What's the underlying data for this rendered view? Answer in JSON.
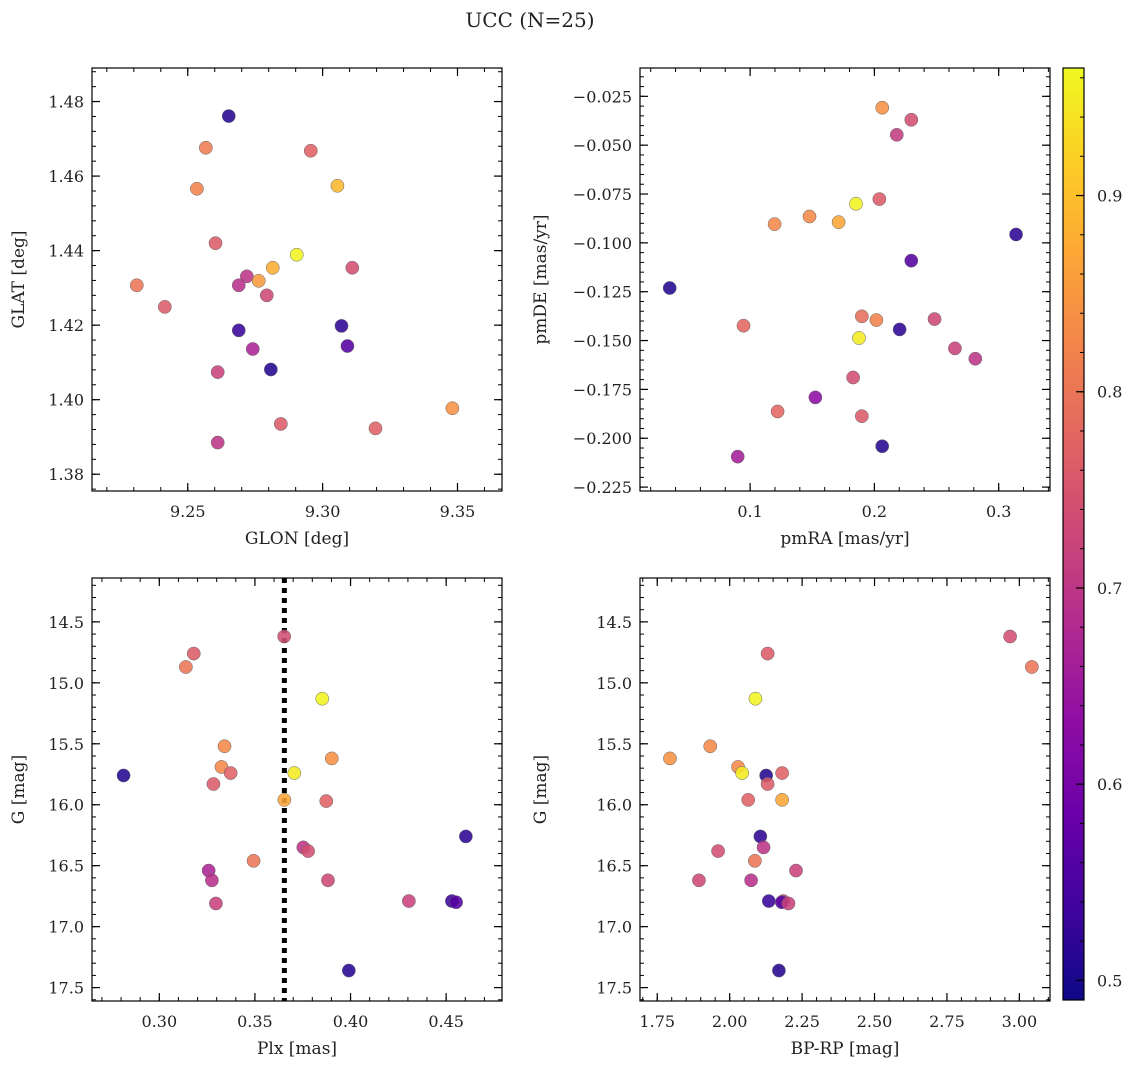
{
  "chart_data": {
    "suptitle": "UCC (N=25)",
    "colorbar": {
      "colormap": "plasma",
      "range": [
        0.49,
        0.965
      ],
      "ticks": [
        0.5,
        0.6,
        0.7,
        0.8,
        0.9
      ],
      "tick_labels": [
        "0.5",
        "0.6",
        "0.7",
        "0.8",
        "0.9"
      ]
    },
    "panels": [
      {
        "type": "scatter",
        "xlabel": "GLON [deg]",
        "ylabel": "GLAT [deg]",
        "xlim": [
          9.2145,
          9.3665
        ],
        "ylim": [
          1.3755,
          1.489
        ],
        "xticks": [
          9.25,
          9.3,
          9.35
        ],
        "xtick_labels": [
          "9.25",
          "9.30",
          "9.35"
        ],
        "yticks": [
          1.38,
          1.4,
          1.42,
          1.44,
          1.46,
          1.48
        ],
        "ytick_labels": [
          "1.38",
          "1.40",
          "1.42",
          "1.44",
          "1.46",
          "1.48"
        ],
        "yinvert": false,
        "points": [
          {
            "x": 9.2652,
            "y": 1.4761,
            "c": 0.51
          },
          {
            "x": 9.2567,
            "y": 1.4676,
            "c": 0.81
          },
          {
            "x": 9.2956,
            "y": 1.4668,
            "c": 0.77
          },
          {
            "x": 9.2534,
            "y": 1.4566,
            "c": 0.82
          },
          {
            "x": 9.3055,
            "y": 1.4574,
            "c": 0.89
          },
          {
            "x": 9.2603,
            "y": 1.442,
            "c": 0.76
          },
          {
            "x": 9.2904,
            "y": 1.4389,
            "c": 0.96
          },
          {
            "x": 9.2815,
            "y": 1.4354,
            "c": 0.88
          },
          {
            "x": 9.311,
            "y": 1.4354,
            "c": 0.74
          },
          {
            "x": 9.2719,
            "y": 1.4331,
            "c": 0.7
          },
          {
            "x": 9.2311,
            "y": 1.4307,
            "c": 0.8
          },
          {
            "x": 9.2689,
            "y": 1.4307,
            "c": 0.69
          },
          {
            "x": 9.2763,
            "y": 1.4319,
            "c": 0.85
          },
          {
            "x": 9.2793,
            "y": 1.428,
            "c": 0.73
          },
          {
            "x": 9.2415,
            "y": 1.4249,
            "c": 0.76
          },
          {
            "x": 9.307,
            "y": 1.4198,
            "c": 0.52
          },
          {
            "x": 9.2689,
            "y": 1.4186,
            "c": 0.53
          },
          {
            "x": 9.3092,
            "y": 1.4144,
            "c": 0.56
          },
          {
            "x": 9.2741,
            "y": 1.4136,
            "c": 0.67
          },
          {
            "x": 9.2611,
            "y": 1.4074,
            "c": 0.72
          },
          {
            "x": 9.2808,
            "y": 1.4081,
            "c": 0.51
          },
          {
            "x": 9.3481,
            "y": 1.3977,
            "c": 0.84
          },
          {
            "x": 9.2845,
            "y": 1.3935,
            "c": 0.76
          },
          {
            "x": 9.3196,
            "y": 1.3923,
            "c": 0.77
          },
          {
            "x": 9.2611,
            "y": 1.3885,
            "c": 0.7
          }
        ]
      },
      {
        "type": "scatter",
        "xlabel": "pmRA [mas/yr]",
        "ylabel": "pmDE [mas/yr]",
        "xlim": [
          0.0114,
          0.3413
        ],
        "ylim": [
          -0.227,
          -0.0105
        ],
        "xticks": [
          0.1,
          0.2,
          0.3
        ],
        "xtick_labels": [
          "0.1",
          "0.2",
          "0.3"
        ],
        "yticks": [
          -0.225,
          -0.2,
          -0.175,
          -0.15,
          -0.125,
          -0.1,
          -0.075,
          -0.05,
          -0.025
        ],
        "ytick_labels": [
          "−0.225",
          "−0.200",
          "−0.175",
          "−0.150",
          "−0.125",
          "−0.100",
          "−0.075",
          "−0.050",
          "−0.025"
        ],
        "yinvert": false,
        "points": [
          {
            "x": 0.2063,
            "y": -0.0308,
            "c": 0.84
          },
          {
            "x": 0.2297,
            "y": -0.037,
            "c": 0.74
          },
          {
            "x": 0.218,
            "y": -0.0447,
            "c": 0.71
          },
          {
            "x": 0.1852,
            "y": -0.08,
            "c": 0.96
          },
          {
            "x": 0.204,
            "y": -0.0776,
            "c": 0.76
          },
          {
            "x": 0.1478,
            "y": -0.0865,
            "c": 0.83
          },
          {
            "x": 0.1712,
            "y": -0.0894,
            "c": 0.87
          },
          {
            "x": 0.1197,
            "y": -0.0904,
            "c": 0.83
          },
          {
            "x": 0.314,
            "y": -0.0957,
            "c": 0.52
          },
          {
            "x": 0.2297,
            "y": -0.1091,
            "c": 0.56
          },
          {
            "x": 0.0353,
            "y": -0.1231,
            "c": 0.51
          },
          {
            "x": 0.1899,
            "y": -0.1376,
            "c": 0.79
          },
          {
            "x": 0.2016,
            "y": -0.1395,
            "c": 0.82
          },
          {
            "x": 0.2484,
            "y": -0.139,
            "c": 0.73
          },
          {
            "x": 0.0947,
            "y": -0.1424,
            "c": 0.78
          },
          {
            "x": 0.2203,
            "y": -0.1443,
            "c": 0.52
          },
          {
            "x": 0.1876,
            "y": -0.1487,
            "c": 0.95
          },
          {
            "x": 0.2648,
            "y": -0.154,
            "c": 0.72
          },
          {
            "x": 0.2812,
            "y": -0.1593,
            "c": 0.7
          },
          {
            "x": 0.1829,
            "y": -0.1689,
            "c": 0.74
          },
          {
            "x": 0.1525,
            "y": -0.1791,
            "c": 0.63
          },
          {
            "x": 0.1221,
            "y": -0.1863,
            "c": 0.78
          },
          {
            "x": 0.1899,
            "y": -0.1887,
            "c": 0.76
          },
          {
            "x": 0.2063,
            "y": -0.2041,
            "c": 0.51
          },
          {
            "x": 0.09,
            "y": -0.2094,
            "c": 0.66
          }
        ]
      },
      {
        "type": "scatter",
        "xlabel": "Plx [mas]",
        "ylabel": "G [mag]",
        "xlim": [
          0.2648,
          0.4792
        ],
        "ylim": [
          14.14,
          17.61
        ],
        "xticks": [
          0.3,
          0.35,
          0.4,
          0.45
        ],
        "xtick_labels": [
          "0.30",
          "0.35",
          "0.40",
          "0.45"
        ],
        "yticks": [
          14.5,
          15.0,
          15.5,
          16.0,
          16.5,
          17.0,
          17.5
        ],
        "ytick_labels": [
          "14.5",
          "15.0",
          "15.5",
          "16.0",
          "16.5",
          "17.0",
          "17.5"
        ],
        "yinvert": true,
        "vline": {
          "x": 0.3654,
          "style": "dotted"
        },
        "points": [
          {
            "x": 0.3653,
            "y": 14.62,
            "c": 0.74
          },
          {
            "x": 0.318,
            "y": 14.76,
            "c": 0.76
          },
          {
            "x": 0.3139,
            "y": 14.87,
            "c": 0.8
          },
          {
            "x": 0.3852,
            "y": 15.13,
            "c": 0.96
          },
          {
            "x": 0.3341,
            "y": 15.52,
            "c": 0.83
          },
          {
            "x": 0.3902,
            "y": 15.62,
            "c": 0.84
          },
          {
            "x": 0.3325,
            "y": 15.69,
            "c": 0.83
          },
          {
            "x": 0.3373,
            "y": 15.74,
            "c": 0.77
          },
          {
            "x": 0.3706,
            "y": 15.74,
            "c": 0.95
          },
          {
            "x": 0.2813,
            "y": 15.76,
            "c": 0.51
          },
          {
            "x": 0.3283,
            "y": 15.83,
            "c": 0.76
          },
          {
            "x": 0.3654,
            "y": 15.96,
            "c": 0.87
          },
          {
            "x": 0.3873,
            "y": 15.97,
            "c": 0.77
          },
          {
            "x": 0.4603,
            "y": 16.26,
            "c": 0.52
          },
          {
            "x": 0.3753,
            "y": 16.35,
            "c": 0.7
          },
          {
            "x": 0.3778,
            "y": 16.38,
            "c": 0.74
          },
          {
            "x": 0.3493,
            "y": 16.46,
            "c": 0.8
          },
          {
            "x": 0.3258,
            "y": 16.54,
            "c": 0.67
          },
          {
            "x": 0.3275,
            "y": 16.62,
            "c": 0.69
          },
          {
            "x": 0.3882,
            "y": 16.62,
            "c": 0.73
          },
          {
            "x": 0.4305,
            "y": 16.79,
            "c": 0.72
          },
          {
            "x": 0.453,
            "y": 16.79,
            "c": 0.53
          },
          {
            "x": 0.4552,
            "y": 16.8,
            "c": 0.56
          },
          {
            "x": 0.3296,
            "y": 16.81,
            "c": 0.72
          },
          {
            "x": 0.3991,
            "y": 17.36,
            "c": 0.51
          }
        ]
      },
      {
        "type": "scatter",
        "xlabel": "BP-RP [mag]",
        "ylabel": "G [mag]",
        "xlim": [
          1.6905,
          3.1057
        ],
        "ylim": [
          14.14,
          17.61
        ],
        "xticks": [
          1.75,
          2.0,
          2.25,
          2.5,
          2.75,
          3.0
        ],
        "xtick_labels": [
          "1.75",
          "2.00",
          "2.25",
          "2.50",
          "2.75",
          "3.00"
        ],
        "yticks": [
          14.5,
          15.0,
          15.5,
          16.0,
          16.5,
          17.0,
          17.5
        ],
        "ytick_labels": [
          "14.5",
          "15.0",
          "15.5",
          "16.0",
          "16.5",
          "17.0",
          "17.5"
        ],
        "yinvert": true,
        "points": [
          {
            "x": 2.968,
            "y": 14.62,
            "c": 0.74
          },
          {
            "x": 3.043,
            "y": 14.87,
            "c": 0.8
          },
          {
            "x": 2.131,
            "y": 14.76,
            "c": 0.76
          },
          {
            "x": 2.089,
            "y": 15.13,
            "c": 0.96
          },
          {
            "x": 1.794,
            "y": 15.62,
            "c": 0.84
          },
          {
            "x": 1.933,
            "y": 15.52,
            "c": 0.83
          },
          {
            "x": 2.029,
            "y": 15.69,
            "c": 0.83
          },
          {
            "x": 2.043,
            "y": 15.74,
            "c": 0.95
          },
          {
            "x": 2.181,
            "y": 15.74,
            "c": 0.77
          },
          {
            "x": 2.126,
            "y": 15.76,
            "c": 0.51
          },
          {
            "x": 2.131,
            "y": 15.83,
            "c": 0.76
          },
          {
            "x": 2.064,
            "y": 15.96,
            "c": 0.77
          },
          {
            "x": 2.181,
            "y": 15.96,
            "c": 0.87
          },
          {
            "x": 2.106,
            "y": 16.26,
            "c": 0.52
          },
          {
            "x": 2.117,
            "y": 16.35,
            "c": 0.7
          },
          {
            "x": 1.96,
            "y": 16.38,
            "c": 0.74
          },
          {
            "x": 2.087,
            "y": 16.46,
            "c": 0.8
          },
          {
            "x": 2.229,
            "y": 16.54,
            "c": 0.72
          },
          {
            "x": 1.894,
            "y": 16.62,
            "c": 0.73
          },
          {
            "x": 2.074,
            "y": 16.62,
            "c": 0.69
          },
          {
            "x": 2.135,
            "y": 16.79,
            "c": 0.53
          },
          {
            "x": 2.185,
            "y": 16.79,
            "c": 0.72
          },
          {
            "x": 2.18,
            "y": 16.8,
            "c": 0.56
          },
          {
            "x": 2.203,
            "y": 16.81,
            "c": 0.72
          },
          {
            "x": 2.17,
            "y": 17.36,
            "c": 0.51
          }
        ]
      }
    ]
  }
}
